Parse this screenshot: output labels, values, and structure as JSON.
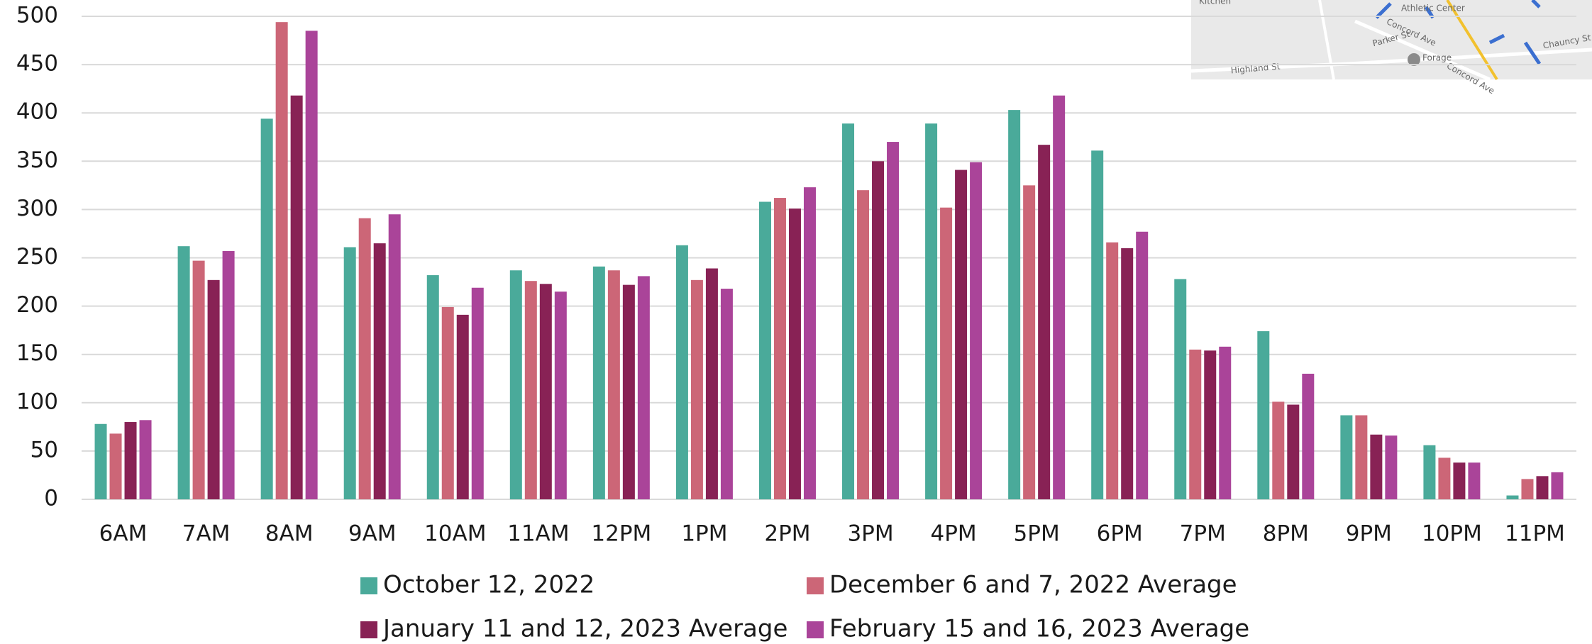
{
  "chart_data": {
    "type": "bar",
    "categories": [
      "6AM",
      "7AM",
      "8AM",
      "9AM",
      "10AM",
      "11AM",
      "12PM",
      "1PM",
      "2PM",
      "3PM",
      "4PM",
      "5PM",
      "6PM",
      "7PM",
      "8PM",
      "9PM",
      "10PM",
      "11PM"
    ],
    "series": [
      {
        "name": "October 12, 2022",
        "color": "#4aaa9a",
        "values": [
          78,
          262,
          394,
          261,
          232,
          237,
          241,
          263,
          308,
          389,
          389,
          403,
          361,
          228,
          174,
          87,
          56,
          4
        ]
      },
      {
        "name": "December 6 and 7, 2022 Average",
        "color": "#cc6677",
        "values": [
          68,
          247,
          494,
          291,
          199,
          226,
          237,
          227,
          312,
          320,
          302,
          325,
          266,
          155,
          101,
          87,
          43,
          21
        ]
      },
      {
        "name": "January 11 and 12, 2023 Average",
        "color": "#882255",
        "values": [
          80,
          227,
          418,
          265,
          191,
          223,
          222,
          239,
          301,
          350,
          341,
          367,
          260,
          154,
          98,
          67,
          38,
          24
        ]
      },
      {
        "name": "February 15 and 16, 2023 Average",
        "color": "#aa4499",
        "values": [
          82,
          257,
          485,
          295,
          219,
          215,
          231,
          218,
          323,
          370,
          349,
          418,
          277,
          158,
          130,
          66,
          38,
          28
        ]
      }
    ],
    "ylim": [
      0,
      500
    ],
    "yticks": [
      0,
      50,
      100,
      150,
      200,
      250,
      300,
      350,
      400,
      450,
      500
    ],
    "grid": true
  },
  "map_labels": [
    "Kitchen",
    "Athletic Center",
    "Concord Ave",
    "Parker St",
    "Forage",
    "Highland St",
    "Chauncy St",
    "Concord Ave"
  ]
}
